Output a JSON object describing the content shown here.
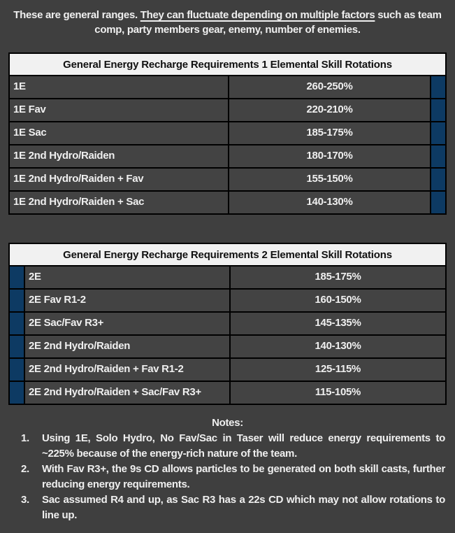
{
  "colors": {
    "page_background": "#3f3f3f",
    "row_background": "#434343",
    "table_header_background": "#f1f1f1",
    "accent_navy": "#0d3a63",
    "border_black": "#000000",
    "text_white": "#efefef"
  },
  "intro": {
    "before": "These are general ranges. ",
    "underlined": "They can fluctuate depending on multiple factors",
    "after": " such as team comp, party members gear, enemy, number of enemies."
  },
  "table1": {
    "title": "General Energy Recharge Requirements 1 Elemental Skill Rotations",
    "accent_side": "right",
    "rows": [
      {
        "label": "1E",
        "value": "260-250%"
      },
      {
        "label": "1E Fav",
        "value": "220-210%"
      },
      {
        "label": "1E Sac",
        "value": "185-175%"
      },
      {
        "label": "1E 2nd Hydro/Raiden",
        "value": "180-170%"
      },
      {
        "label": "1E 2nd Hydro/Raiden + Fav",
        "value": "155-150%"
      },
      {
        "label": "1E 2nd Hydro/Raiden + Sac",
        "value": "140-130%"
      }
    ]
  },
  "table2": {
    "title": "General Energy Recharge Requirements 2 Elemental Skill Rotations",
    "accent_side": "left",
    "rows": [
      {
        "label": "2E",
        "value": "185-175%"
      },
      {
        "label": "2E Fav R1-2",
        "value": "160-150%"
      },
      {
        "label": "2E Sac/Fav R3+",
        "value": "145-135%"
      },
      {
        "label": "2E 2nd Hydro/Raiden",
        "value": "140-130%"
      },
      {
        "label": "2E 2nd Hydro/Raiden + Fav R1-2",
        "value": "125-115%"
      },
      {
        "label": "2E 2nd Hydro/Raiden + Sac/Fav R3+",
        "value": "115-105%"
      }
    ]
  },
  "notes": {
    "heading": "Notes:",
    "items": [
      {
        "num": "1.",
        "text": "Using 1E, Solo Hydro, No Fav/Sac in Taser will reduce energy requirements to ~225% because of the energy-rich nature of the team."
      },
      {
        "num": "2.",
        "text": "With Fav R3+, the 9s CD allows particles to be generated on both skill casts, further reducing energy requirements."
      },
      {
        "num": "3.",
        "text": "Sac assumed R4 and up, as Sac R3 has a 22s CD which may not allow rotations to line up."
      }
    ]
  }
}
